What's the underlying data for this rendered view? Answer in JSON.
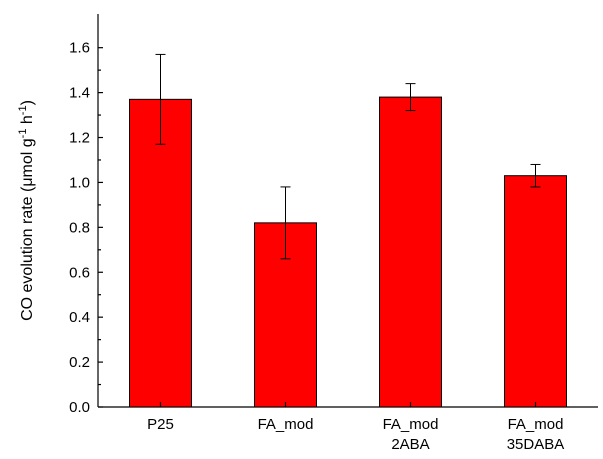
{
  "chart_data": {
    "type": "bar",
    "categories": [
      [
        "P25"
      ],
      [
        "FA_mod"
      ],
      [
        "FA_mod",
        "2ABA"
      ],
      [
        "FA_mod",
        "35DABA"
      ]
    ],
    "values": [
      1.37,
      0.82,
      1.38,
      1.03
    ],
    "errors": [
      0.2,
      0.16,
      0.06,
      0.05
    ],
    "title": "",
    "xlabel": "",
    "ylabel": {
      "prefix": "CO evolution rate (",
      "mu": "μ",
      "unit_main": "mol g",
      "exp1": "-1",
      "mid": " h",
      "exp2": "-1",
      "suffix": ")"
    },
    "ylim": [
      0,
      1.75
    ],
    "yticks": [
      "0.0",
      "0.2",
      "0.4",
      "0.6",
      "0.8",
      "1.0",
      "1.2",
      "1.4",
      "1.6"
    ],
    "grid": false,
    "legend": "none",
    "bar_color": "#ff0000",
    "edge_color": "#000000"
  }
}
